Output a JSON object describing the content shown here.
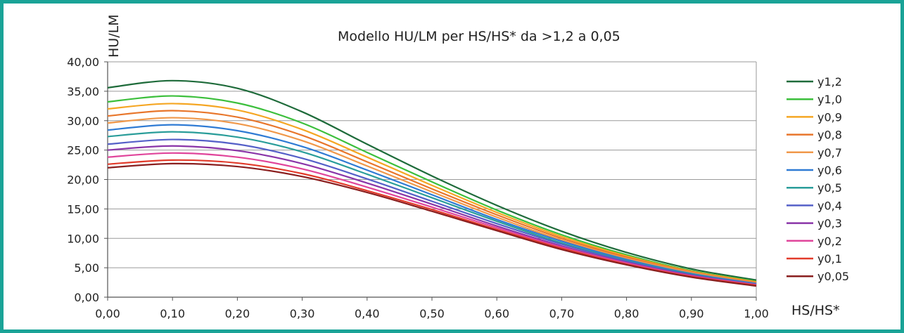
{
  "chart_data": {
    "type": "line",
    "title": "Modello HU/LM per HS/HS* da >1,2 a 0,05",
    "xlabel": "HS/HS*",
    "ylabel": "HU/LM",
    "xlim": [
      0,
      1
    ],
    "ylim": [
      0,
      40
    ],
    "x_ticks": [
      "0,00",
      "0,10",
      "0,20",
      "0,30",
      "0,40",
      "0,50",
      "0,60",
      "0,70",
      "0,80",
      "0,90",
      "1,00"
    ],
    "y_ticks": [
      "0,00",
      "5,00",
      "10,00",
      "15,00",
      "20,00",
      "25,00",
      "30,00",
      "35,00",
      "40,00"
    ],
    "grid": "horizontal",
    "legend_position": "right",
    "x": [
      0,
      0.1,
      0.2,
      0.3,
      0.4,
      0.5,
      0.6,
      0.7,
      0.8,
      0.9,
      1.0
    ],
    "series": [
      {
        "name": "y1,2",
        "color": "#1e6b3a",
        "values": [
          35.6,
          36.8,
          35.5,
          31.5,
          26.0,
          20.6,
          15.6,
          11.2,
          7.6,
          4.8,
          2.9
        ]
      },
      {
        "name": "y1,0",
        "color": "#3cbf3c",
        "values": [
          33.2,
          34.2,
          33.0,
          29.6,
          24.6,
          19.6,
          14.8,
          10.6,
          7.2,
          4.5,
          2.7
        ]
      },
      {
        "name": "y0,9",
        "color": "#f5a623",
        "values": [
          32.0,
          32.9,
          31.8,
          28.5,
          23.8,
          19.0,
          14.4,
          10.3,
          7.0,
          4.4,
          2.6
        ]
      },
      {
        "name": "y0,8",
        "color": "#e8762b",
        "values": [
          30.8,
          31.7,
          30.6,
          27.5,
          23.0,
          18.4,
          14.0,
          10.0,
          6.8,
          4.3,
          2.5
        ]
      },
      {
        "name": "y0,7",
        "color": "#f0984a",
        "values": [
          29.6,
          30.5,
          29.5,
          26.6,
          22.3,
          17.9,
          13.6,
          9.7,
          6.6,
          4.2,
          2.4
        ]
      },
      {
        "name": "y0,6",
        "color": "#2f7bd4",
        "values": [
          28.4,
          29.3,
          28.3,
          25.6,
          21.6,
          17.4,
          13.2,
          9.5,
          6.4,
          4.0,
          2.3
        ]
      },
      {
        "name": "y0,5",
        "color": "#2a9d9a",
        "values": [
          27.3,
          28.1,
          27.2,
          24.7,
          20.9,
          16.9,
          12.9,
          9.2,
          6.2,
          3.9,
          2.2
        ]
      },
      {
        "name": "y0,4",
        "color": "#5560c8",
        "values": [
          26.0,
          26.8,
          26.0,
          23.6,
          20.1,
          16.3,
          12.5,
          9.0,
          6.1,
          3.8,
          2.2
        ]
      },
      {
        "name": "y0,3",
        "color": "#8a35a8",
        "values": [
          25.0,
          25.7,
          24.9,
          22.7,
          19.4,
          15.8,
          12.1,
          8.7,
          5.9,
          3.7,
          2.1
        ]
      },
      {
        "name": "y0,2",
        "color": "#e0459b",
        "values": [
          23.8,
          24.5,
          23.8,
          21.8,
          18.7,
          15.3,
          11.8,
          8.5,
          5.8,
          3.6,
          2.1
        ]
      },
      {
        "name": "y0,1",
        "color": "#e23b2b",
        "values": [
          22.6,
          23.3,
          22.8,
          21.0,
          18.1,
          14.9,
          11.5,
          8.3,
          5.6,
          3.5,
          2.0
        ]
      },
      {
        "name": "y0,05",
        "color": "#8a1f1f",
        "values": [
          22.0,
          22.7,
          22.2,
          20.5,
          17.8,
          14.6,
          11.3,
          8.1,
          5.5,
          3.4,
          1.9
        ]
      }
    ]
  }
}
